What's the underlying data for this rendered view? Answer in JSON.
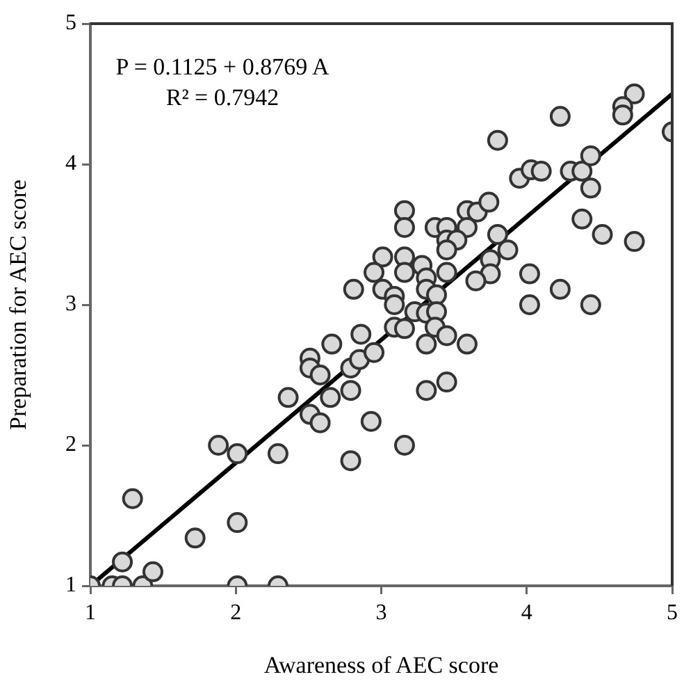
{
  "chart_data": {
    "type": "scatter",
    "xlabel": "Awareness of AEC score",
    "ylabel": "Preparation for AEC score",
    "annotations": [
      "P = 0.1125 + 0.8769 A",
      "R² = 0.7942"
    ],
    "xlim": [
      1,
      5
    ],
    "ylim": [
      1,
      5
    ],
    "xticks": [
      1,
      2,
      3,
      4,
      5
    ],
    "yticks": [
      1,
      2,
      3,
      4,
      5
    ],
    "grid": false,
    "legend": false,
    "marker": "circle",
    "series": [
      {
        "color": "#d9d9d9",
        "x": [
          1.0,
          1.15,
          1.22,
          1.36,
          2.01,
          2.29,
          1.22,
          1.43,
          1.29,
          1.72,
          2.01,
          1.88,
          2.01,
          2.29,
          2.36,
          2.51,
          2.51,
          2.58,
          2.51,
          2.58,
          2.65,
          2.79,
          2.79,
          2.85,
          2.93,
          2.79,
          2.66,
          2.95,
          2.86,
          2.81,
          3.31,
          3.45,
          3.16,
          3.01,
          3.16,
          2.95,
          3.16,
          3.28,
          3.31,
          3.45,
          3.01,
          3.09,
          3.09,
          3.31,
          3.38,
          3.23,
          3.31,
          3.38,
          3.09,
          3.16,
          3.37,
          3.45,
          3.31,
          3.59,
          3.16,
          3.16,
          3.37,
          3.45,
          3.59,
          3.66,
          3.74,
          3.59,
          3.45,
          3.52,
          3.45,
          3.8,
          3.87,
          3.75,
          3.75,
          3.65,
          4.02,
          4.02,
          4.74,
          4.66,
          4.66,
          5.0,
          4.23,
          3.8,
          3.95,
          4.03,
          4.1,
          4.3,
          4.38,
          4.44,
          4.44,
          4.38,
          4.52,
          4.74,
          4.23,
          4.44
        ],
        "values": [
          1.0,
          1.0,
          1.0,
          1.0,
          1.0,
          1.0,
          1.17,
          1.1,
          1.62,
          1.34,
          1.45,
          2.0,
          1.94,
          1.94,
          2.34,
          2.62,
          2.55,
          2.5,
          2.22,
          2.16,
          2.34,
          2.39,
          2.55,
          2.61,
          2.17,
          1.89,
          2.72,
          2.66,
          2.79,
          3.11,
          2.39,
          2.45,
          2.0,
          3.34,
          3.34,
          3.23,
          3.23,
          3.28,
          3.19,
          3.23,
          3.11,
          3.06,
          3.0,
          3.11,
          3.07,
          2.95,
          2.94,
          2.95,
          2.84,
          2.83,
          2.84,
          2.78,
          2.72,
          2.72,
          3.67,
          3.55,
          3.55,
          3.55,
          3.67,
          3.66,
          3.73,
          3.55,
          3.46,
          3.46,
          3.39,
          3.5,
          3.39,
          3.32,
          3.22,
          3.17,
          3.22,
          3.0,
          4.5,
          4.41,
          4.35,
          4.23,
          4.34,
          4.17,
          3.9,
          3.96,
          3.95,
          3.95,
          3.95,
          4.06,
          3.83,
          3.61,
          3.5,
          3.45,
          3.11,
          3.0
        ]
      },
      {
        "type": "line",
        "color": "#000000",
        "marker": "none",
        "line_style": "solid",
        "x": [
          1,
          5
        ],
        "values": [
          1.0,
          4.5
        ]
      }
    ]
  }
}
